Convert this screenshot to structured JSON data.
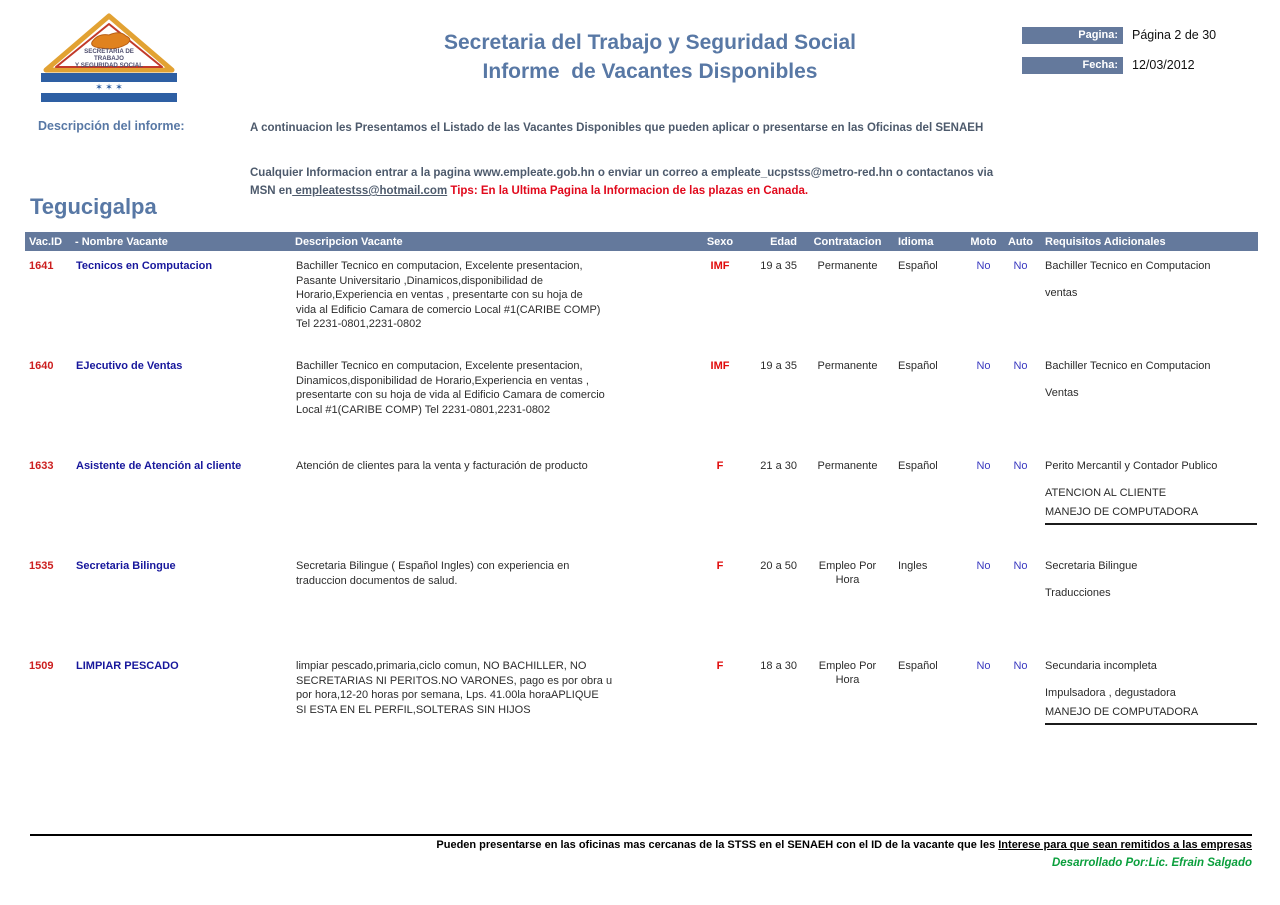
{
  "header": {
    "title_line1": "Secretaria del Trabajo y Seguridad Social",
    "title_line2": "Informe  de Vacantes Disponibles",
    "pagina_label": "Pagina:",
    "pagina_value": "Página 2 de 30",
    "fecha_label": "Fecha:",
    "fecha_value": "12/03/2012"
  },
  "logo": {
    "line1": "SECRETARIA DE",
    "line2": "TRABAJO",
    "line3": "Y SEGURIDAD SOCIAL",
    "stars": "✶ ✶ ✶"
  },
  "description": {
    "label": "Descripción del informe:",
    "p1": "A continuacion les Presentamos el Listado de las Vacantes Disponibles que pueden aplicar o presentarse en las Oficinas del SENAEH",
    "p2_text": "Cualquier Informacion entrar a la pagina www.empleate.gob.hn o enviar un correo a empleate_ucpstss@metro-red.hn o contactanos via\nMSN en",
    "p2_link": " empleatestss@hotmail.com",
    "p2_sep": "  ",
    "p2_tips": "Tips: En la Ultima Pagina la Informacion de las plazas en Canada."
  },
  "section": {
    "city": "Tegucigalpa"
  },
  "table": {
    "headers": {
      "vacid": "Vac.ID",
      "name": "- Nombre Vacante",
      "desc": "Descripcion Vacante",
      "sexo": "Sexo",
      "edad": "Edad",
      "contratacion": "Contratacion",
      "idioma": "Idioma",
      "moto": "Moto",
      "auto": "Auto",
      "req": "Requisitos Adicionales"
    },
    "rows": [
      {
        "id": "1641",
        "name": "Tecnicos en Computacion",
        "desc": "Bachiller Tecnico en computacion, Excelente presentacion,\nPasante Universitario ,Dinamicos,disponibilidad de\nHorario,Experiencia en ventas , presentarte con su hoja de\nvida al Edificio Camara de comercio Local #1(CARIBE COMP)\nTel 2231-0801,2231-0802",
        "sexo": "IMF",
        "edad": "19 a 35",
        "contratacion": "Permanente",
        "idioma": "Español",
        "moto": "No",
        "auto": "No",
        "requisitos": [
          "Bachiller Tecnico en Computacion",
          "ventas"
        ],
        "requisitos_underline": false
      },
      {
        "id": "1640",
        "name": "EJecutivo de Ventas",
        "desc": "Bachiller Tecnico en computacion, Excelente presentacion,\nDinamicos,disponibilidad de Horario,Experiencia en ventas ,\npresentarte con su hoja de vida al Edificio Camara de comercio\nLocal #1(CARIBE COMP) Tel 2231-0801,2231-0802",
        "sexo": "IMF",
        "edad": "19 a 35",
        "contratacion": "Permanente",
        "idioma": "Español",
        "moto": "No",
        "auto": "No",
        "requisitos": [
          "Bachiller Tecnico en Computacion",
          "Ventas"
        ],
        "requisitos_underline": false
      },
      {
        "id": "1633",
        "name": "Asistente de Atención al cliente",
        "desc": "Atención de clientes para la venta y facturación de producto",
        "sexo": "F",
        "edad": "21 a 30",
        "contratacion": "Permanente",
        "idioma": "Español",
        "moto": "No",
        "auto": "No",
        "requisitos": [
          "Perito Mercantil y Contador Publico",
          "ATENCION AL CLIENTE",
          "MANEJO DE COMPUTADORA"
        ],
        "requisitos_underline": true
      },
      {
        "id": "1535",
        "name": "Secretaria Bilingue",
        "desc": "Secretaria Bilingue ( Español Ingles) con experiencia en\ntraduccion documentos de salud.",
        "sexo": "F",
        "edad": "20 a 50",
        "contratacion": "Empleo Por Hora",
        "idioma": "Ingles",
        "moto": "No",
        "auto": "No",
        "requisitos": [
          "Secretaria Bilingue",
          "Traducciones"
        ],
        "requisitos_underline": false
      },
      {
        "id": "1509",
        "name": "LIMPIAR PESCADO",
        "desc": "limpiar pescado,primaria,ciclo comun, NO BACHILLER, NO\nSECRETARIAS NI PERITOS.NO VARONES, pago es por obra u\npor hora,12-20 horas por semana, Lps. 41.00la horaAPLIQUE\nSI ESTA EN EL PERFIL,SOLTERAS SIN HIJOS",
        "sexo": "F",
        "edad": "18 a 30",
        "contratacion": "Empleo Por Hora",
        "idioma": "Español",
        "moto": "No",
        "auto": "No",
        "requisitos": [
          "Secundaria incompleta",
          "Impulsadora , degustadora",
          "MANEJO DE COMPUTADORA"
        ],
        "requisitos_underline": true
      }
    ]
  },
  "footer": {
    "note_plain": "Pueden presentarse en las oficinas mas cercanas de la STSS en el SENAEH con el ID de la vacante que les ",
    "note_underlined": "Interese para que sean remitidos a las empresas",
    "credit": "Desarrollado Por:Lic. Efrain Salgado"
  },
  "colors": {
    "accent_blue": "#5878a5",
    "table_header_bg": "#64799c",
    "id_red": "#cc1f1f",
    "name_navy": "#17179c",
    "no_blue": "#3a3ac0",
    "tips_red": "#e1091c",
    "credit_green": "#0a9f3c"
  }
}
